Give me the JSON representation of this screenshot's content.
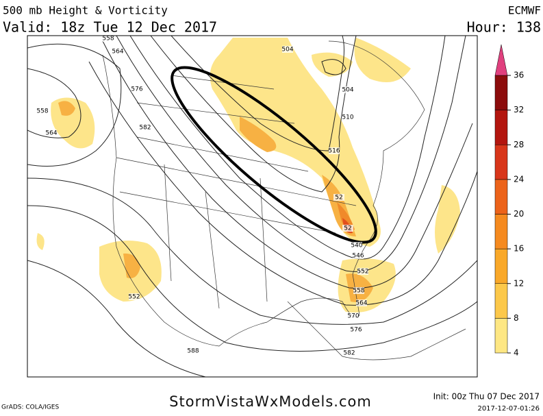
{
  "header": {
    "title": "500 mb Height & Vorticity",
    "valid": "Valid: 18z Tue 12 Dec 2017",
    "model": "ECMWF",
    "hour": "Hour: 138"
  },
  "contour_labels": [
    "558",
    "564",
    "558",
    "564",
    "576",
    "582",
    "504",
    "504",
    "510",
    "516",
    "52",
    "52",
    "540",
    "546",
    "552",
    "558",
    "564",
    "570",
    "576",
    "582",
    "588",
    "552"
  ],
  "colorbar": {
    "ticks": [
      4,
      8,
      12,
      16,
      20,
      24,
      28,
      32,
      36
    ],
    "colors": [
      "#fee783",
      "#fcc84a",
      "#f9a829",
      "#f58a1f",
      "#ec631a",
      "#d8361a",
      "#b3160f",
      "#8c0c0c"
    ],
    "overflow_color": "#e0407e"
  },
  "footer": {
    "grads": "GrADS: COLA/IGES",
    "site": "StormVistaWxModels.com",
    "init": "Init: 00z Thu 07 Dec 2017",
    "timestamp": "2017-12-07-01:26"
  }
}
